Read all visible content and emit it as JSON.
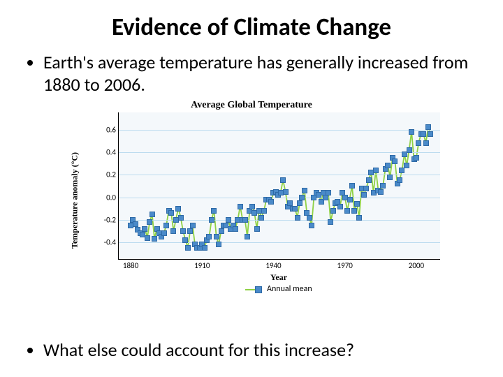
{
  "title": "Evidence of Climate Change",
  "bullet1": "Earth's average temperature has generally increased from 1880 to 2006.",
  "bullet2": "What else could account for this increase?",
  "chart": {
    "title": "Average Global Temperature",
    "ylabel": "Temperature anomaly (°C)",
    "xlabel": "Year",
    "legend_label": "Annual mean",
    "background_color": "#f4f8fb",
    "grid_color": "#bcdcef",
    "line_color": "#8fd144",
    "marker_color": "#4a8ac9",
    "marker_border": "#2e6aa6",
    "axis_color": "#000000",
    "x_min": 1875,
    "x_max": 2010,
    "y_min": -0.55,
    "y_max": 0.75,
    "y_ticks": [
      -0.4,
      -0.2,
      0.0,
      0.2,
      0.4,
      0.6
    ],
    "x_ticks": [
      1880,
      1910,
      1940,
      1970,
      2000
    ],
    "series": [
      {
        "x": 1880,
        "y": -0.25
      },
      {
        "x": 1881,
        "y": -0.2
      },
      {
        "x": 1882,
        "y": -0.24
      },
      {
        "x": 1883,
        "y": -0.29
      },
      {
        "x": 1884,
        "y": -0.32
      },
      {
        "x": 1885,
        "y": -0.33
      },
      {
        "x": 1886,
        "y": -0.28
      },
      {
        "x": 1887,
        "y": -0.36
      },
      {
        "x": 1888,
        "y": -0.22
      },
      {
        "x": 1889,
        "y": -0.15
      },
      {
        "x": 1890,
        "y": -0.37
      },
      {
        "x": 1891,
        "y": -0.28
      },
      {
        "x": 1892,
        "y": -0.32
      },
      {
        "x": 1893,
        "y": -0.35
      },
      {
        "x": 1894,
        "y": -0.32
      },
      {
        "x": 1895,
        "y": -0.25
      },
      {
        "x": 1896,
        "y": -0.12
      },
      {
        "x": 1897,
        "y": -0.14
      },
      {
        "x": 1898,
        "y": -0.3
      },
      {
        "x": 1899,
        "y": -0.2
      },
      {
        "x": 1900,
        "y": -0.1
      },
      {
        "x": 1901,
        "y": -0.18
      },
      {
        "x": 1902,
        "y": -0.3
      },
      {
        "x": 1903,
        "y": -0.38
      },
      {
        "x": 1904,
        "y": -0.45
      },
      {
        "x": 1905,
        "y": -0.3
      },
      {
        "x": 1906,
        "y": -0.25
      },
      {
        "x": 1907,
        "y": -0.42
      },
      {
        "x": 1908,
        "y": -0.45
      },
      {
        "x": 1909,
        "y": -0.45
      },
      {
        "x": 1910,
        "y": -0.42
      },
      {
        "x": 1911,
        "y": -0.45
      },
      {
        "x": 1912,
        "y": -0.38
      },
      {
        "x": 1913,
        "y": -0.35
      },
      {
        "x": 1914,
        "y": -0.2
      },
      {
        "x": 1915,
        "y": -0.12
      },
      {
        "x": 1916,
        "y": -0.35
      },
      {
        "x": 1917,
        "y": -0.42
      },
      {
        "x": 1918,
        "y": -0.3
      },
      {
        "x": 1919,
        "y": -0.25
      },
      {
        "x": 1920,
        "y": -0.25
      },
      {
        "x": 1921,
        "y": -0.2
      },
      {
        "x": 1922,
        "y": -0.28
      },
      {
        "x": 1923,
        "y": -0.25
      },
      {
        "x": 1924,
        "y": -0.28
      },
      {
        "x": 1925,
        "y": -0.2
      },
      {
        "x": 1926,
        "y": -0.08
      },
      {
        "x": 1927,
        "y": -0.2
      },
      {
        "x": 1928,
        "y": -0.2
      },
      {
        "x": 1929,
        "y": -0.35
      },
      {
        "x": 1930,
        "y": -0.12
      },
      {
        "x": 1931,
        "y": -0.08
      },
      {
        "x": 1932,
        "y": -0.14
      },
      {
        "x": 1933,
        "y": -0.28
      },
      {
        "x": 1934,
        "y": -0.12
      },
      {
        "x": 1935,
        "y": -0.18
      },
      {
        "x": 1936,
        "y": -0.12
      },
      {
        "x": 1937,
        "y": -0.02
      },
      {
        "x": 1938,
        "y": -0.02
      },
      {
        "x": 1939,
        "y": -0.04
      },
      {
        "x": 1940,
        "y": 0.04
      },
      {
        "x": 1941,
        "y": 0.05
      },
      {
        "x": 1942,
        "y": 0.02
      },
      {
        "x": 1943,
        "y": 0.04
      },
      {
        "x": 1944,
        "y": 0.15
      },
      {
        "x": 1945,
        "y": 0.05
      },
      {
        "x": 1946,
        "y": -0.08
      },
      {
        "x": 1947,
        "y": -0.05
      },
      {
        "x": 1948,
        "y": -0.1
      },
      {
        "x": 1949,
        "y": -0.1
      },
      {
        "x": 1950,
        "y": -0.18
      },
      {
        "x": 1951,
        "y": -0.05
      },
      {
        "x": 1952,
        "y": 0.0
      },
      {
        "x": 1953,
        "y": 0.06
      },
      {
        "x": 1954,
        "y": -0.14
      },
      {
        "x": 1955,
        "y": -0.18
      },
      {
        "x": 1956,
        "y": -0.25
      },
      {
        "x": 1957,
        "y": 0.0
      },
      {
        "x": 1958,
        "y": 0.04
      },
      {
        "x": 1959,
        "y": 0.02
      },
      {
        "x": 1960,
        "y": -0.04
      },
      {
        "x": 1961,
        "y": 0.04
      },
      {
        "x": 1962,
        "y": 0.0
      },
      {
        "x": 1963,
        "y": 0.04
      },
      {
        "x": 1964,
        "y": -0.22
      },
      {
        "x": 1965,
        "y": -0.12
      },
      {
        "x": 1966,
        "y": -0.05
      },
      {
        "x": 1967,
        "y": -0.04
      },
      {
        "x": 1968,
        "y": -0.08
      },
      {
        "x": 1969,
        "y": 0.04
      },
      {
        "x": 1970,
        "y": 0.0
      },
      {
        "x": 1971,
        "y": -0.12
      },
      {
        "x": 1972,
        "y": -0.02
      },
      {
        "x": 1973,
        "y": 0.1
      },
      {
        "x": 1974,
        "y": -0.12
      },
      {
        "x": 1975,
        "y": -0.06
      },
      {
        "x": 1976,
        "y": -0.18
      },
      {
        "x": 1977,
        "y": 0.08
      },
      {
        "x": 1978,
        "y": 0.02
      },
      {
        "x": 1979,
        "y": 0.08
      },
      {
        "x": 1980,
        "y": 0.15
      },
      {
        "x": 1981,
        "y": 0.22
      },
      {
        "x": 1982,
        "y": 0.04
      },
      {
        "x": 1983,
        "y": 0.24
      },
      {
        "x": 1984,
        "y": 0.06
      },
      {
        "x": 1985,
        "y": 0.05
      },
      {
        "x": 1986,
        "y": 0.1
      },
      {
        "x": 1987,
        "y": 0.25
      },
      {
        "x": 1988,
        "y": 0.28
      },
      {
        "x": 1989,
        "y": 0.18
      },
      {
        "x": 1990,
        "y": 0.35
      },
      {
        "x": 1991,
        "y": 0.32
      },
      {
        "x": 1992,
        "y": 0.12
      },
      {
        "x": 1993,
        "y": 0.15
      },
      {
        "x": 1994,
        "y": 0.24
      },
      {
        "x": 1995,
        "y": 0.38
      },
      {
        "x": 1996,
        "y": 0.28
      },
      {
        "x": 1997,
        "y": 0.42
      },
      {
        "x": 1998,
        "y": 0.58
      },
      {
        "x": 1999,
        "y": 0.34
      },
      {
        "x": 2000,
        "y": 0.35
      },
      {
        "x": 2001,
        "y": 0.48
      },
      {
        "x": 2002,
        "y": 0.56
      },
      {
        "x": 2003,
        "y": 0.56
      },
      {
        "x": 2004,
        "y": 0.48
      },
      {
        "x": 2005,
        "y": 0.62
      },
      {
        "x": 2006,
        "y": 0.56
      }
    ]
  }
}
